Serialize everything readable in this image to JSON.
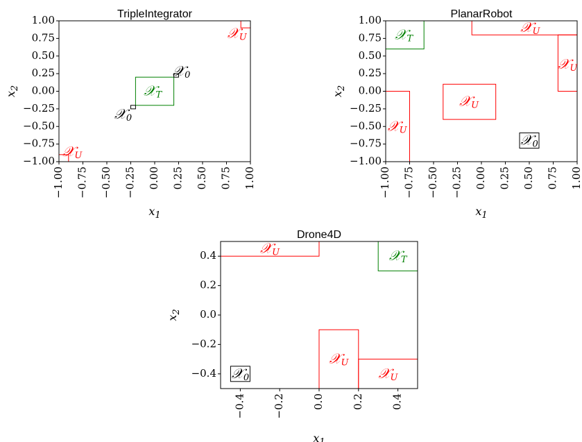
{
  "chart_data": [
    {
      "id": "p1",
      "type": "diagram",
      "title": "TripleIntegrator",
      "xlabel": "x1",
      "ylabel": "x2",
      "xlim": [
        -1.0,
        1.0
      ],
      "ylim": [
        -1.0,
        1.0
      ],
      "xticks": [
        "−1.00",
        "−0.75",
        "−0.50",
        "−0.25",
        "0.00",
        "0.25",
        "0.50",
        "0.75",
        "1.00"
      ],
      "yticks": [
        "1.00",
        "0.75",
        "0.50",
        "0.25",
        "0.00",
        "−0.25",
        "−0.50",
        "−0.75",
        "−1.00"
      ],
      "xtick_values": [
        -1.0,
        -0.75,
        -0.5,
        -0.25,
        0.0,
        0.25,
        0.5,
        0.75,
        1.0
      ],
      "ytick_values": [
        1.0,
        0.75,
        0.5,
        0.25,
        0.0,
        -0.25,
        -0.5,
        -0.75,
        -1.0
      ],
      "regions": [
        {
          "kind": "unsafe",
          "color": "#ff0000",
          "x": [
            0.9,
            1.0
          ],
          "y": [
            0.9,
            1.0
          ]
        },
        {
          "kind": "unsafe",
          "color": "#ff0000",
          "x": [
            -1.0,
            -0.9
          ],
          "y": [
            -1.0,
            -0.9
          ]
        },
        {
          "kind": "target",
          "color": "#008000",
          "x": [
            -0.2,
            0.2
          ],
          "y": [
            -0.2,
            0.2
          ]
        },
        {
          "kind": "initial",
          "color": "#000000",
          "x": [
            -0.25,
            -0.2
          ],
          "y": [
            -0.25,
            -0.2
          ]
        },
        {
          "kind": "initial",
          "color": "#000000",
          "x": [
            0.2,
            0.25
          ],
          "y": [
            0.2,
            0.25
          ]
        }
      ],
      "labels": [
        {
          "main": "𝒳",
          "sub": "U",
          "color": "#ff0000",
          "x": 0.86,
          "y": 0.82
        },
        {
          "main": "𝒳",
          "sub": "U",
          "color": "#ff0000",
          "x": -0.86,
          "y": -0.86
        },
        {
          "main": "𝒳",
          "sub": "T",
          "color": "#008000",
          "x": -0.02,
          "y": 0.0
        },
        {
          "main": "𝒳",
          "sub": "0",
          "color": "#000000",
          "x": 0.28,
          "y": 0.28
        },
        {
          "main": "𝒳",
          "sub": "0",
          "color": "#000000",
          "x": -0.33,
          "y": -0.33
        }
      ]
    },
    {
      "id": "p2",
      "type": "diagram",
      "title": "PlanarRobot",
      "xlabel": "x1",
      "ylabel": "x2",
      "xlim": [
        -1.0,
        1.0
      ],
      "ylim": [
        -1.0,
        1.0
      ],
      "xticks": [
        "−1.00",
        "−0.75",
        "−0.50",
        "−0.25",
        "0.00",
        "0.25",
        "0.50",
        "0.75",
        "1.00"
      ],
      "yticks": [
        "1.00",
        "0.75",
        "0.50",
        "0.25",
        "0.00",
        "−0.25",
        "−0.50",
        "−0.75",
        "−1.00"
      ],
      "xtick_values": [
        -1.0,
        -0.75,
        -0.5,
        -0.25,
        0.0,
        0.25,
        0.5,
        0.75,
        1.0
      ],
      "ytick_values": [
        1.0,
        0.75,
        0.5,
        0.25,
        0.0,
        -0.25,
        -0.5,
        -0.75,
        -1.0
      ],
      "regions": [
        {
          "kind": "target",
          "color": "#008000",
          "x": [
            -1.0,
            -0.6
          ],
          "y": [
            0.6,
            1.0
          ]
        },
        {
          "kind": "unsafe",
          "color": "#ff0000",
          "x": [
            -0.1,
            1.0
          ],
          "y": [
            0.8,
            1.0
          ]
        },
        {
          "kind": "unsafe",
          "color": "#ff0000",
          "x": [
            0.8,
            1.0
          ],
          "y": [
            0.0,
            0.8
          ]
        },
        {
          "kind": "unsafe",
          "color": "#ff0000",
          "x": [
            -0.4,
            0.15
          ],
          "y": [
            -0.4,
            0.1
          ]
        },
        {
          "kind": "unsafe",
          "color": "#ff0000",
          "x": [
            -1.0,
            -0.75
          ],
          "y": [
            -1.0,
            0.0
          ]
        }
      ],
      "labels": [
        {
          "main": "𝒳",
          "sub": "T",
          "color": "#008000",
          "x": -0.81,
          "y": 0.8
        },
        {
          "main": "𝒳",
          "sub": "U",
          "color": "#ff0000",
          "x": 0.51,
          "y": 0.9
        },
        {
          "main": "𝒳",
          "sub": "U",
          "color": "#ff0000",
          "x": 0.9,
          "y": 0.38
        },
        {
          "main": "𝒳",
          "sub": "U",
          "color": "#ff0000",
          "x": -0.13,
          "y": -0.15
        },
        {
          "main": "𝒳",
          "sub": "U",
          "color": "#ff0000",
          "x": -0.88,
          "y": -0.5
        },
        {
          "main": "𝒳",
          "sub": "0",
          "color": "#000000",
          "x": 0.5,
          "y": -0.7,
          "boxed": true
        }
      ]
    },
    {
      "id": "p3",
      "type": "diagram",
      "title": "Drone4D",
      "xlabel": "x1",
      "ylabel": "x2",
      "xlim": [
        -0.5,
        0.5
      ],
      "ylim": [
        -0.5,
        0.5
      ],
      "xticks": [
        "−0.4",
        "−0.2",
        "0.0",
        "0.2",
        "0.4"
      ],
      "yticks": [
        "0.4",
        "0.2",
        "0.0",
        "−0.2",
        "−0.4"
      ],
      "xtick_values": [
        -0.4,
        -0.2,
        0.0,
        0.2,
        0.4
      ],
      "ytick_values": [
        0.4,
        0.2,
        0.0,
        -0.2,
        -0.4
      ],
      "regions": [
        {
          "kind": "unsafe",
          "color": "#ff0000",
          "x": [
            -0.5,
            0.0
          ],
          "y": [
            0.4,
            0.5
          ]
        },
        {
          "kind": "target",
          "color": "#008000",
          "x": [
            0.3,
            0.5
          ],
          "y": [
            0.3,
            0.5
          ]
        },
        {
          "kind": "unsafe",
          "color": "#ff0000",
          "x": [
            0.0,
            0.2
          ],
          "y": [
            -0.5,
            -0.1
          ]
        },
        {
          "kind": "unsafe",
          "color": "#ff0000",
          "x": [
            0.2,
            0.5
          ],
          "y": [
            -0.5,
            -0.3
          ]
        }
      ],
      "labels": [
        {
          "main": "𝒳",
          "sub": "U",
          "color": "#ff0000",
          "x": -0.25,
          "y": 0.45
        },
        {
          "main": "𝒳",
          "sub": "T",
          "color": "#008000",
          "x": 0.4,
          "y": 0.4
        },
        {
          "main": "𝒳",
          "sub": "U",
          "color": "#ff0000",
          "x": 0.1,
          "y": -0.3
        },
        {
          "main": "𝒳",
          "sub": "U",
          "color": "#ff0000",
          "x": 0.35,
          "y": -0.4
        },
        {
          "main": "𝒳",
          "sub": "0",
          "color": "#000000",
          "x": -0.4,
          "y": -0.4,
          "boxed": true
        }
      ]
    }
  ]
}
